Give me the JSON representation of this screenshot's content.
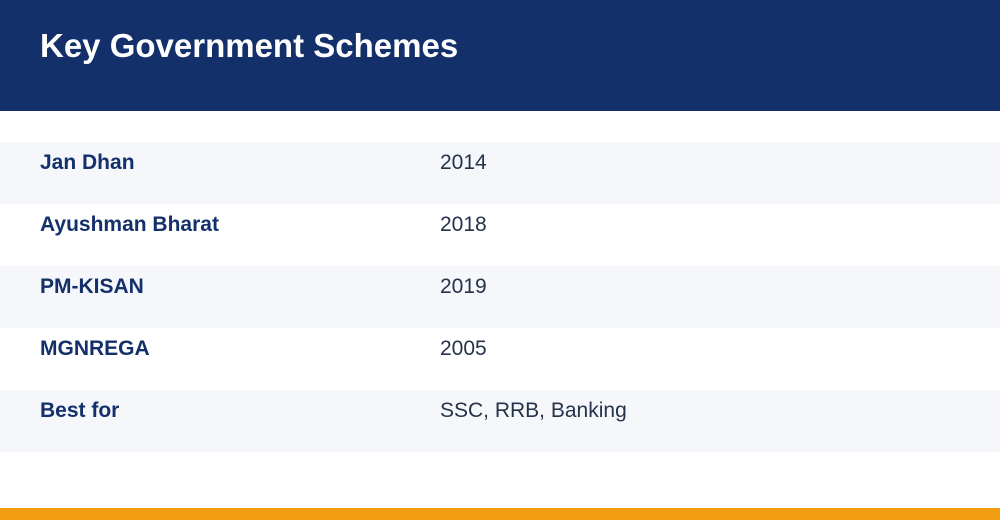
{
  "header": {
    "title": "Key Government Schemes"
  },
  "rows": [
    {
      "label": "Jan Dhan",
      "value": "2014"
    },
    {
      "label": "Ayushman Bharat",
      "value": "2018"
    },
    {
      "label": "PM-KISAN",
      "value": "2019"
    },
    {
      "label": "MGNREGA",
      "value": "2005"
    },
    {
      "label": "Best for",
      "value": "SSC, RRB, Banking"
    }
  ],
  "colors": {
    "header_background": "#14306b",
    "accent": "#f29c12",
    "label_text": "#14306b",
    "value_text": "#25324a",
    "alt_row_background": "#f5f7fb"
  }
}
